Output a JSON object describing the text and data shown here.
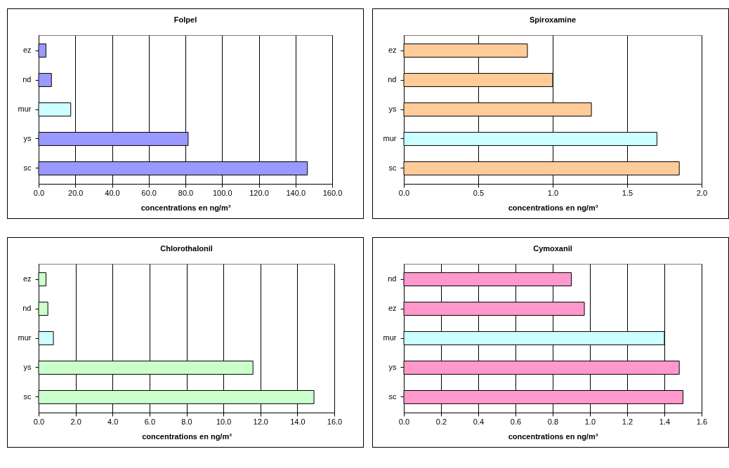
{
  "chart_data": [
    {
      "type": "bar",
      "orientation": "horizontal",
      "title": "Folpel",
      "xlabel": "concentrations en ng/m³",
      "categories": [
        "ez",
        "nd",
        "mur",
        "ys",
        "sc"
      ],
      "values": [
        4,
        7,
        17.5,
        81.5,
        146.5
      ],
      "colors": [
        "#9999ff",
        "#9999ff",
        "#ccffff",
        "#9999ff",
        "#9999ff"
      ],
      "xlim": [
        0,
        160
      ],
      "xticks": [
        {
          "value": 0,
          "label": "0.0"
        },
        {
          "value": 20,
          "label": "20.0"
        },
        {
          "value": 40,
          "label": "40.0"
        },
        {
          "value": 60,
          "label": "60.0"
        },
        {
          "value": 80,
          "label": "80.0"
        },
        {
          "value": 100,
          "label": "100.0"
        },
        {
          "value": 120,
          "label": "120.0"
        },
        {
          "value": 140,
          "label": "140.0"
        },
        {
          "value": 160,
          "label": "160.0"
        }
      ],
      "grid": "x"
    },
    {
      "type": "bar",
      "orientation": "horizontal",
      "title": "Spiroxamine",
      "xlabel": "concentrations en ng/m³",
      "categories": [
        "ez",
        "nd",
        "ys",
        "mur",
        "sc"
      ],
      "values": [
        0.83,
        1.0,
        1.26,
        1.7,
        1.85
      ],
      "colors": [
        "#ffcc99",
        "#ffcc99",
        "#ffcc99",
        "#ccffff",
        "#ffcc99"
      ],
      "xlim": [
        0,
        2
      ],
      "xticks": [
        {
          "value": 0,
          "label": "0.0"
        },
        0.5,
        {
          "value": 1,
          "label": "1.0"
        },
        1.5,
        {
          "value": 2,
          "label": "2.0"
        }
      ],
      "grid": "x"
    },
    {
      "type": "bar",
      "orientation": "horizontal",
      "title": "Chlorothalonil",
      "xlabel": "concentrations en ng/m³",
      "categories": [
        "ez",
        "nd",
        "mur",
        "ys",
        "sc"
      ],
      "values": [
        0.4,
        0.5,
        0.8,
        11.6,
        14.9
      ],
      "colors": [
        "#ccffcc",
        "#ccffcc",
        "#ccffff",
        "#ccffcc",
        "#ccffcc"
      ],
      "xlim": [
        0,
        16
      ],
      "xticks": [
        {
          "value": 0,
          "label": "0.0"
        },
        {
          "value": 2,
          "label": "2.0"
        },
        {
          "value": 4,
          "label": "4.0"
        },
        {
          "value": 6,
          "label": "6.0"
        },
        {
          "value": 8,
          "label": "8.0"
        },
        {
          "value": 10,
          "label": "10.0"
        },
        {
          "value": 12,
          "label": "12.0"
        },
        {
          "value": 14,
          "label": "14.0"
        },
        {
          "value": 16,
          "label": "16.0"
        }
      ],
      "grid": "x"
    },
    {
      "type": "bar",
      "orientation": "horizontal",
      "title": "Cymoxanil",
      "xlabel": "concentrations en ng/m³",
      "categories": [
        "nd",
        "ez",
        "mur",
        "ys",
        "sc"
      ],
      "values": [
        0.9,
        0.97,
        1.4,
        1.48,
        1.5
      ],
      "colors": [
        "#ff99cc",
        "#ff99cc",
        "#ccffff",
        "#ff99cc",
        "#ff99cc"
      ],
      "xlim": [
        0,
        1.6
      ],
      "xticks": [
        {
          "value": 0,
          "label": "0.0"
        },
        0.2,
        0.4,
        0.6,
        0.8,
        {
          "value": 1,
          "label": "1.0"
        },
        1.2,
        1.4,
        1.6
      ],
      "grid": "x"
    }
  ]
}
